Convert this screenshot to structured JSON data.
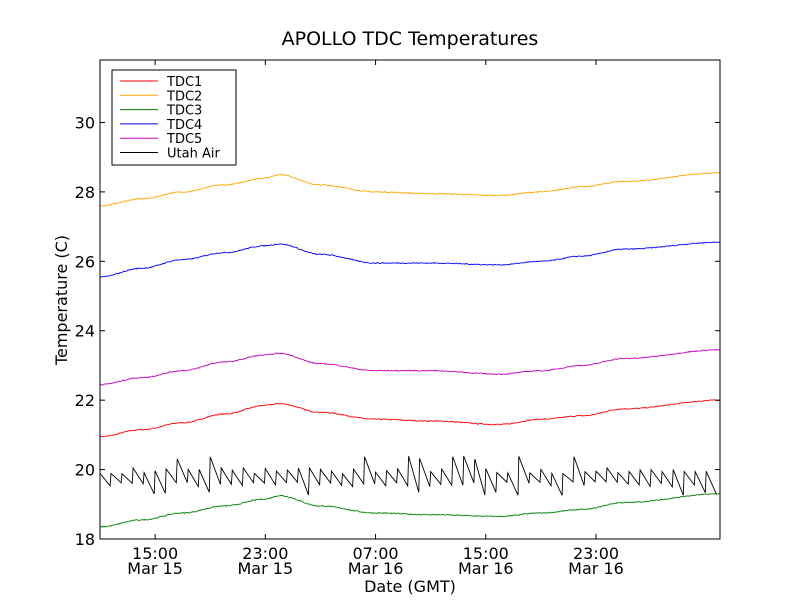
{
  "chart_data": {
    "type": "line",
    "title": "APOLLO TDC Temperatures",
    "xlabel": "Date (GMT)",
    "ylabel": "Temperature (C)",
    "xlim": [
      0,
      45
    ],
    "ylim": [
      18,
      31.8
    ],
    "x_unit": "hours since Mar 15 11:00 GMT",
    "x_ticks": [
      {
        "x": 4,
        "label1": "15:00",
        "label2": "Mar 15"
      },
      {
        "x": 12,
        "label1": "23:00",
        "label2": "Mar 15"
      },
      {
        "x": 20,
        "label1": "07:00",
        "label2": "Mar 16"
      },
      {
        "x": 28,
        "label1": "15:00",
        "label2": "Mar 16"
      },
      {
        "x": 36,
        "label1": "23:00",
        "label2": "Mar 16"
      }
    ],
    "y_ticks": [
      {
        "y": 18,
        "label": "18"
      },
      {
        "y": 20,
        "label": "20"
      },
      {
        "y": 22,
        "label": "22"
      },
      {
        "y": 24,
        "label": "24"
      },
      {
        "y": 26,
        "label": "26"
      },
      {
        "y": 28,
        "label": "28"
      },
      {
        "y": 30,
        "label": "30"
      }
    ],
    "legend": "upper-left",
    "series": [
      {
        "name": "TDC1",
        "color": "#ff0000",
        "x": [
          0,
          3,
          6,
          9,
          12,
          13,
          16,
          20,
          24,
          29,
          32,
          35,
          38,
          45
        ],
        "y": [
          20.95,
          21.15,
          21.35,
          21.6,
          21.85,
          21.9,
          21.65,
          21.45,
          21.4,
          21.3,
          21.45,
          21.55,
          21.75,
          22.0
        ]
      },
      {
        "name": "TDC2",
        "color": "#ffa500",
        "x": [
          0,
          3,
          6,
          9,
          12,
          13,
          16,
          20,
          24,
          29,
          32,
          35,
          38,
          45
        ],
        "y": [
          27.6,
          27.8,
          28.0,
          28.2,
          28.4,
          28.5,
          28.2,
          28.0,
          27.95,
          27.9,
          28.0,
          28.15,
          28.3,
          28.55
        ]
      },
      {
        "name": "TDC3",
        "color": "#008000",
        "x": [
          0,
          3,
          6,
          9,
          12,
          13,
          16,
          20,
          24,
          29,
          32,
          35,
          38,
          45
        ],
        "y": [
          18.35,
          18.55,
          18.75,
          18.95,
          19.15,
          19.25,
          18.95,
          18.75,
          18.7,
          18.65,
          18.75,
          18.85,
          19.05,
          19.3
        ]
      },
      {
        "name": "TDC4",
        "color": "#0000ff",
        "x": [
          0,
          3,
          6,
          9,
          12,
          13,
          16,
          20,
          24,
          29,
          32,
          35,
          38,
          45
        ],
        "y": [
          25.55,
          25.8,
          26.05,
          26.25,
          26.45,
          26.5,
          26.2,
          25.95,
          25.95,
          25.9,
          26.0,
          26.15,
          26.35,
          26.55
        ]
      },
      {
        "name": "TDC5",
        "color": "#bf00bf",
        "x": [
          0,
          3,
          6,
          9,
          12,
          13,
          16,
          20,
          24,
          29,
          32,
          35,
          38,
          45
        ],
        "y": [
          22.45,
          22.65,
          22.85,
          23.1,
          23.3,
          23.35,
          23.05,
          22.85,
          22.85,
          22.75,
          22.85,
          23.0,
          23.2,
          23.45
        ]
      },
      {
        "name": "Utah Air",
        "color": "#000000",
        "kind": "sawtooth",
        "x_start": 0,
        "x_end": 45,
        "period_hours": 0.8,
        "low": 19.5,
        "high": 20.05,
        "spike_high": 20.4,
        "spike_low": 19.25
      }
    ]
  }
}
